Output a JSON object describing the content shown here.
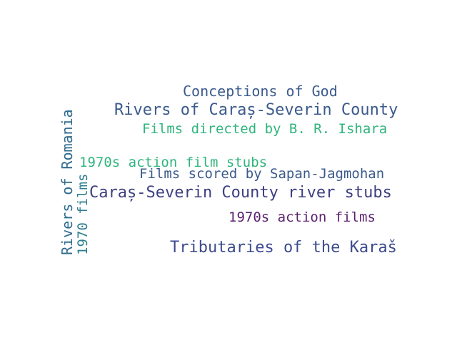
{
  "words": [
    {
      "text": "Conceptions of God",
      "color": "#3b5a8c"
    },
    {
      "text": "Rivers of Caraș-Severin County",
      "color": "#3b5a8c"
    },
    {
      "text": "Films directed by B. R. Ishara",
      "color": "#2fb47c"
    },
    {
      "text": "1970s action film stubs",
      "color": "#2fb47c"
    },
    {
      "text": "Films scored by Sapan-Jagmohan",
      "color": "#3b5a8c"
    },
    {
      "text": "Caraș-Severin County river stubs",
      "color": "#3d3f82"
    },
    {
      "text": "1970s action films",
      "color": "#5a1f6e"
    },
    {
      "text": "Tributaries of the Karaš",
      "color": "#3d4b8e"
    },
    {
      "text": "Rivers of Romania",
      "color": "#2f6a8e"
    },
    {
      "text": "1970 films",
      "color": "#2e7f8e"
    }
  ]
}
